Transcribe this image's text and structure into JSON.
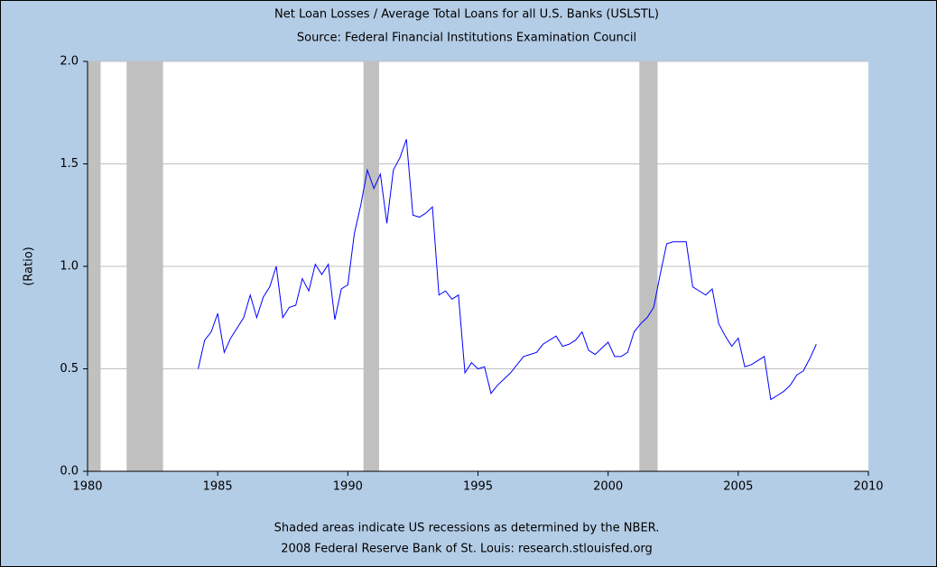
{
  "chart_data": {
    "type": "line",
    "title": "Net Loan Losses / Average Total Loans for all U.S. Banks (USLSTL)",
    "subtitle": "Source: Federal Financial Institutions Examination Council",
    "ylabel": "(Ratio)",
    "footnote": "Shaded areas indicate US recessions as determined by the NBER.",
    "credit": "2008 Federal Reserve Bank of St. Louis: research.stlouisfed.org",
    "color": "#0000ff",
    "recession_color": "#c0c0c0",
    "grid": true,
    "recessions": [
      [
        1980.0,
        1980.5
      ],
      [
        1981.5,
        1982.9
      ],
      [
        1990.6,
        1991.2
      ],
      [
        2001.2,
        2001.9
      ]
    ],
    "x": [
      1984.25,
      1984.5,
      1984.75,
      1985,
      1985.25,
      1985.5,
      1985.75,
      1986,
      1986.25,
      1986.5,
      1986.75,
      1987,
      1987.25,
      1987.5,
      1987.75,
      1988,
      1988.25,
      1988.5,
      1988.75,
      1989,
      1989.25,
      1989.5,
      1989.75,
      1990,
      1990.25,
      1990.5,
      1990.75,
      1991,
      1991.25,
      1991.5,
      1991.75,
      1992,
      1992.25,
      1992.5,
      1992.75,
      1993,
      1993.25,
      1993.5,
      1993.75,
      1994,
      1994.25,
      1994.5,
      1994.75,
      1995,
      1995.25,
      1995.5,
      1995.75,
      1996,
      1996.25,
      1996.5,
      1996.75,
      1997,
      1997.25,
      1997.5,
      1997.75,
      1998,
      1998.25,
      1998.5,
      1998.75,
      1999,
      1999.25,
      1999.5,
      1999.75,
      2000,
      2000.25,
      2000.5,
      2000.75,
      2001,
      2001.25,
      2001.5,
      2001.75,
      2002,
      2002.25,
      2002.5,
      2002.75,
      2003,
      2003.25,
      2003.5,
      2003.75,
      2004,
      2004.25,
      2004.5,
      2004.75,
      2005,
      2005.25,
      2005.5,
      2005.75,
      2006,
      2006.25,
      2006.5,
      2006.75,
      2007,
      2007.25,
      2007.5,
      2007.75,
      2008
    ],
    "values": [
      0.5,
      0.64,
      0.68,
      0.77,
      0.58,
      0.65,
      0.7,
      0.75,
      0.86,
      0.75,
      0.85,
      0.9,
      1.0,
      0.75,
      0.8,
      0.81,
      0.94,
      0.88,
      1.01,
      0.96,
      1.01,
      0.74,
      0.89,
      0.91,
      1.16,
      1.3,
      1.47,
      1.38,
      1.45,
      1.21,
      1.47,
      1.53,
      1.62,
      1.25,
      1.24,
      1.26,
      1.29,
      0.86,
      0.88,
      0.84,
      0.86,
      0.48,
      0.53,
      0.5,
      0.51,
      0.38,
      0.42,
      0.45,
      0.48,
      0.52,
      0.56,
      0.57,
      0.58,
      0.62,
      0.64,
      0.66,
      0.61,
      0.62,
      0.64,
      0.68,
      0.59,
      0.57,
      0.6,
      0.63,
      0.56,
      0.56,
      0.58,
      0.68,
      0.72,
      0.75,
      0.8,
      0.96,
      1.11,
      1.12,
      1.12,
      1.12,
      0.9,
      0.88,
      0.86,
      0.89,
      0.72,
      0.66,
      0.61,
      0.65,
      0.51,
      0.52,
      0.54,
      0.56,
      0.35,
      0.37,
      0.39,
      0.42,
      0.47,
      0.49,
      0.55,
      0.62
    ],
    "xlim": [
      1980,
      2010
    ],
    "xticks": [
      1980,
      1985,
      1990,
      1995,
      2000,
      2005,
      2010
    ],
    "ylim": [
      0,
      2
    ],
    "yticks": [
      {
        "value": 0,
        "label": "0.0"
      },
      0.5,
      {
        "value": 1,
        "label": "1.0"
      },
      1.5,
      {
        "value": 2,
        "label": "2.0"
      }
    ]
  }
}
